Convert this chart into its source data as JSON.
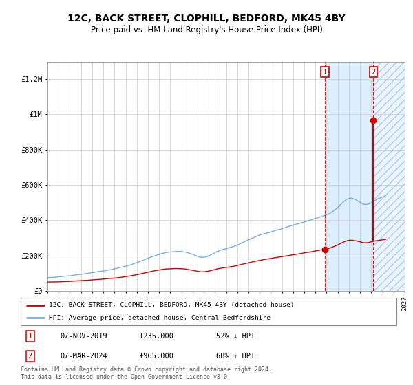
{
  "title": "12C, BACK STREET, CLOPHILL, BEDFORD, MK45 4BY",
  "subtitle": "Price paid vs. HM Land Registry's House Price Index (HPI)",
  "title_fontsize": 10,
  "subtitle_fontsize": 8.5,
  "x_start_year": 1995,
  "x_end_year": 2027,
  "y_max": 1300000,
  "y_ticks": [
    0,
    200000,
    400000,
    600000,
    800000,
    1000000,
    1200000
  ],
  "y_tick_labels": [
    "£0",
    "£200K",
    "£400K",
    "£600K",
    "£800K",
    "£1M",
    "£1.2M"
  ],
  "hpi_color": "#7aade0",
  "price_color": "#cc0000",
  "point1_date": "07-NOV-2019",
  "point1_price": 235000,
  "point1_pct": "52% ↓ HPI",
  "point2_date": "07-MAR-2024",
  "point2_price": 965000,
  "point2_pct": "68% ↑ HPI",
  "legend_line1": "12C, BACK STREET, CLOPHILL, BEDFORD, MK45 4BY (detached house)",
  "legend_line2": "HPI: Average price, detached house, Central Bedfordshire",
  "footnote": "Contains HM Land Registry data © Crown copyright and database right 2024.\nThis data is licensed under the Open Government Licence v3.0.",
  "point1_year": 2019.85,
  "point2_year": 2024.18,
  "bg_color": "#ffffff",
  "plot_bg_color": "#ffffff",
  "grid_color": "#cccccc",
  "shaded_region_color": "#ddeeff",
  "hatch_color": "#c8ddf0"
}
